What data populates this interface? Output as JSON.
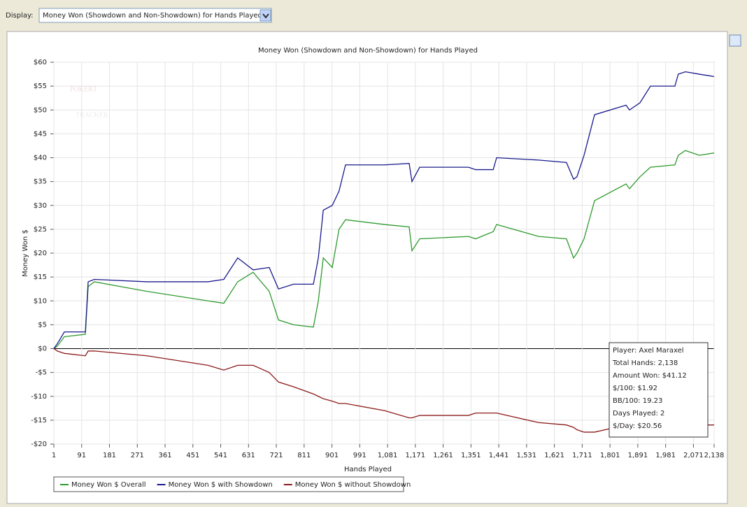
{
  "toolbar": {
    "display_label": "Display:",
    "display_value": "Money Won (Showdown and Non-Showdown) for Hands Played"
  },
  "chart_data": {
    "type": "line",
    "title": "Money Won (Showdown and Non-Showdown) for Hands Played",
    "xlabel": "Hands Played",
    "ylabel": "Money Won $",
    "watermark": [
      "POKER3",
      "TRACKER"
    ],
    "x": [
      1,
      12,
      35,
      103,
      112,
      132,
      302,
      500,
      551,
      596,
      646,
      698,
      728,
      777,
      841,
      857,
      873,
      902,
      924,
      945,
      1072,
      1151,
      1160,
      1185,
      1343,
      1366,
      1423,
      1434,
      1570,
      1660,
      1683,
      1694,
      1717,
      1751,
      1853,
      1864,
      1898,
      1932,
      2011,
      2022,
      2045,
      2090,
      2138
    ],
    "series": [
      {
        "name": "Money Won $ Overall",
        "color": "#2e9a2e",
        "values": [
          0,
          0.5,
          2.5,
          3,
          13,
          14,
          12,
          10,
          9.5,
          14,
          16,
          12,
          6,
          5,
          4.5,
          10,
          19,
          17,
          25,
          27,
          26,
          25.5,
          20.5,
          23,
          23.5,
          23,
          24.5,
          26,
          23.5,
          23,
          19,
          20,
          23,
          31,
          34.5,
          33.5,
          36,
          38,
          38.5,
          40.5,
          41.5,
          40.5,
          41
        ]
      },
      {
        "name": "Money Won $ with Showdown",
        "color": "#1a1a8c",
        "values": [
          0,
          1,
          3.5,
          3.5,
          14,
          14.5,
          14,
          14,
          14.5,
          19,
          16.5,
          17,
          12.5,
          13.5,
          13.5,
          19,
          29,
          30,
          33,
          38.5,
          38.5,
          38.8,
          35,
          38,
          38,
          37.5,
          37.5,
          40,
          39.5,
          39,
          35.5,
          36,
          40.5,
          49,
          51,
          50,
          51.5,
          55,
          55,
          57.5,
          58,
          57.5,
          57
        ]
      },
      {
        "name": "Money Won $ without Showdown",
        "color": "#8c1a1a",
        "values": [
          0,
          -0.5,
          -1,
          -1.5,
          -0.5,
          -0.5,
          -1.5,
          -3.5,
          -4.5,
          -3.5,
          -3.5,
          -5,
          -7,
          -8,
          -9.5,
          -10,
          -10.5,
          -11,
          -11.5,
          -11.5,
          -13,
          -14.5,
          -14.5,
          -14,
          -14,
          -13.5,
          -13.5,
          -13.5,
          -15.5,
          -16,
          -16.5,
          -17,
          -17.5,
          -17.5,
          -16,
          -16,
          -16.5,
          -16,
          -16,
          -16,
          -16.5,
          -16,
          -16
        ]
      }
    ],
    "xlim": [
      1,
      2138
    ],
    "xticks": [
      1,
      91,
      181,
      271,
      361,
      451,
      541,
      631,
      721,
      811,
      901,
      991,
      {
        "value": 1081,
        "label": "1,081"
      },
      {
        "value": 1171,
        "label": "1,171"
      },
      {
        "value": 1261,
        "label": "1,261"
      },
      {
        "value": 1351,
        "label": "1,351"
      },
      {
        "value": 1441,
        "label": "1,441"
      },
      {
        "value": 1531,
        "label": "1,531"
      },
      {
        "value": 1621,
        "label": "1,621"
      },
      {
        "value": 1711,
        "label": "1,711"
      },
      {
        "value": 1801,
        "label": "1,801"
      },
      {
        "value": 1891,
        "label": "1,891"
      },
      {
        "value": 1981,
        "label": "1,981"
      },
      {
        "value": 2071,
        "label": "2,071"
      },
      {
        "value": 2138,
        "label": "2,138"
      }
    ],
    "ylim": [
      -20,
      60
    ],
    "yticks": [
      {
        "value": -20,
        "label": "-$20"
      },
      {
        "value": -15,
        "label": "-$15"
      },
      {
        "value": -10,
        "label": "-$10"
      },
      {
        "value": -5,
        "label": "-$5"
      },
      {
        "value": 0,
        "label": "$0"
      },
      {
        "value": 5,
        "label": "$5"
      },
      {
        "value": 10,
        "label": "$10"
      },
      {
        "value": 15,
        "label": "$15"
      },
      {
        "value": 20,
        "label": "$20"
      },
      {
        "value": 25,
        "label": "$25"
      },
      {
        "value": 30,
        "label": "$30"
      },
      {
        "value": 35,
        "label": "$35"
      },
      {
        "value": 40,
        "label": "$40"
      },
      {
        "value": 45,
        "label": "$45"
      },
      {
        "value": 50,
        "label": "$50"
      },
      {
        "value": 55,
        "label": "$55"
      },
      {
        "value": 60,
        "label": "$60"
      }
    ],
    "grid": true,
    "info_box": [
      "Player: Axel Maraxel",
      "Total Hands: 2,138",
      "Amount Won: $41.12",
      "$/100: $1.92",
      "BB/100: 19.23",
      "Days Played: 2",
      "$/Day: $20.56"
    ]
  }
}
